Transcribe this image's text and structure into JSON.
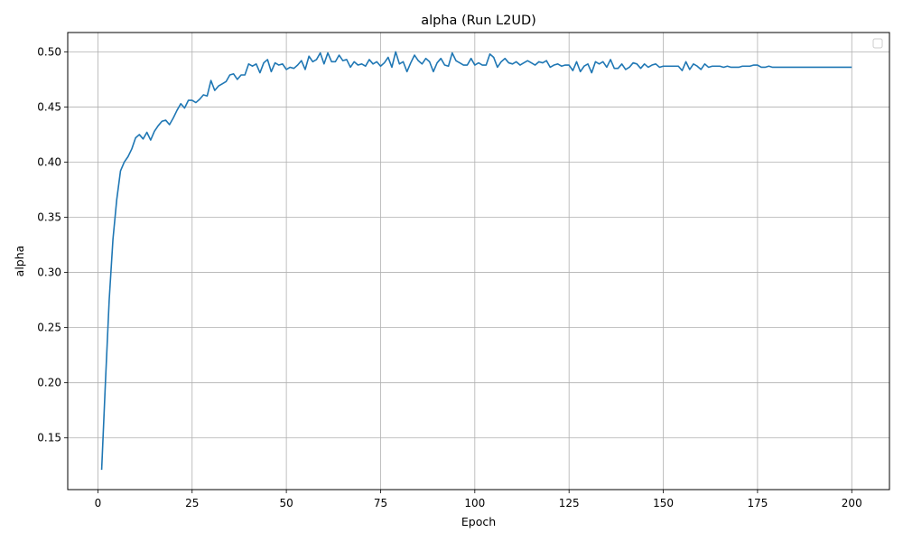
{
  "chart_data": {
    "type": "line",
    "title": "alpha (Run L2UD)",
    "xlabel": "Epoch",
    "ylabel": "alpha",
    "xlim": [
      -8,
      210
    ],
    "ylim": [
      0.1031,
      0.5175
    ],
    "xticks": [
      0,
      25,
      50,
      75,
      100,
      125,
      150,
      175,
      200
    ],
    "yticks": [
      0.15,
      0.2,
      0.25,
      0.3,
      0.35,
      0.4,
      0.45,
      0.5
    ],
    "xtick_labels": [
      "0",
      "25",
      "50",
      "75",
      "100",
      "125",
      "150",
      "175",
      "200"
    ],
    "ytick_labels": [
      "0.15",
      "0.20",
      "0.25",
      "0.30",
      "0.35",
      "0.40",
      "0.45",
      "0.50"
    ],
    "grid": true,
    "legend": {
      "placement": "top-right",
      "entries": []
    },
    "colors": {
      "line": "#1f77b4",
      "grid": "#b0b0b0",
      "axes": "#000000"
    },
    "series": [
      {
        "x_start": 1,
        "x_step": 1,
        "values": [
          0.121,
          0.2,
          0.275,
          0.33,
          0.366,
          0.392,
          0.4,
          0.405,
          0.412,
          0.422,
          0.425,
          0.421,
          0.427,
          0.42,
          0.428,
          0.433,
          0.437,
          0.438,
          0.434,
          0.44,
          0.447,
          0.453,
          0.449,
          0.456,
          0.456,
          0.454,
          0.457,
          0.461,
          0.46,
          0.474,
          0.465,
          0.469,
          0.471,
          0.473,
          0.479,
          0.48,
          0.475,
          0.479,
          0.479,
          0.489,
          0.487,
          0.489,
          0.481,
          0.49,
          0.493,
          0.482,
          0.49,
          0.488,
          0.489,
          0.484,
          0.486,
          0.485,
          0.488,
          0.492,
          0.484,
          0.496,
          0.491,
          0.493,
          0.499,
          0.489,
          0.499,
          0.491,
          0.491,
          0.497,
          0.492,
          0.493,
          0.486,
          0.491,
          0.488,
          0.489,
          0.487,
          0.493,
          0.489,
          0.491,
          0.487,
          0.49,
          0.495,
          0.486,
          0.5,
          0.489,
          0.491,
          0.482,
          0.49,
          0.497,
          0.492,
          0.489,
          0.494,
          0.491,
          0.482,
          0.49,
          0.494,
          0.488,
          0.487,
          0.499,
          0.492,
          0.49,
          0.488,
          0.488,
          0.494,
          0.488,
          0.49,
          0.488,
          0.488,
          0.498,
          0.495,
          0.486,
          0.491,
          0.494,
          0.49,
          0.489,
          0.491,
          0.488,
          0.49,
          0.492,
          0.49,
          0.488,
          0.491,
          0.49,
          0.492,
          0.486,
          0.488,
          0.489,
          0.487,
          0.488,
          0.488,
          0.483,
          0.491,
          0.482,
          0.487,
          0.489,
          0.481,
          0.491,
          0.489,
          0.491,
          0.486,
          0.493,
          0.485,
          0.485,
          0.489,
          0.484,
          0.486,
          0.49,
          0.489,
          0.485,
          0.489,
          0.486,
          0.488,
          0.489,
          0.486,
          0.487,
          0.487,
          0.487,
          0.487,
          0.487,
          0.483,
          0.491,
          0.484,
          0.489,
          0.487,
          0.484,
          0.489,
          0.486,
          0.487,
          0.487,
          0.487,
          0.486,
          0.487,
          0.486,
          0.486,
          0.486,
          0.487,
          0.487,
          0.487,
          0.488,
          0.488,
          0.486,
          0.486,
          0.487,
          0.486,
          0.486,
          0.486,
          0.486,
          0.486,
          0.486,
          0.486,
          0.486,
          0.486,
          0.486,
          0.486,
          0.486,
          0.486,
          0.486,
          0.486,
          0.486,
          0.486,
          0.486,
          0.486,
          0.486,
          0.486,
          0.486
        ]
      }
    ]
  }
}
